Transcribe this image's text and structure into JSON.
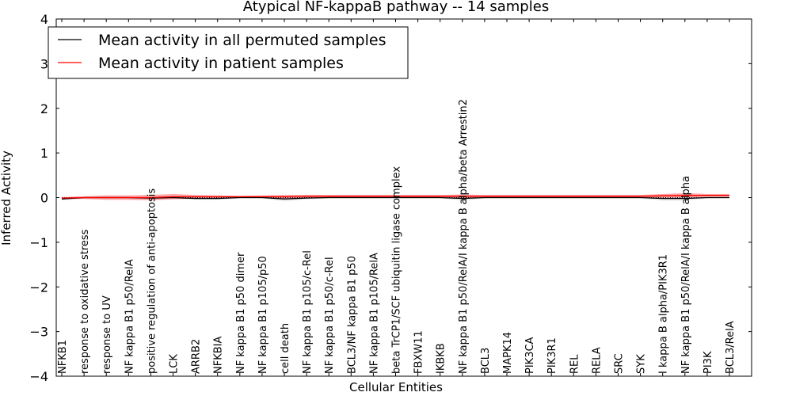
{
  "chart_data": {
    "type": "line",
    "title": "Atypical NF-kappaB pathway -- 14 samples",
    "xlabel": "Cellular Entities",
    "ylabel": "Inferred Activity",
    "ylim": [
      -4,
      4
    ],
    "yticks": [
      -4,
      -3,
      -2,
      -1,
      0,
      1,
      2,
      3,
      4
    ],
    "ytick_labels": [
      "−4",
      "−3",
      "−2",
      "−1",
      "0",
      "1",
      "2",
      "3",
      "4"
    ],
    "legend_position": "top-left",
    "reference_line": 0,
    "categories": [
      "NFKB1",
      "response to oxidative stress",
      "response to UV",
      "NF kappa B1 p50/RelA",
      "positive regulation of anti-apoptosis",
      "LCK",
      "ARRB2",
      "NFKBIA",
      "NF kappa B1 p50 dimer",
      "NF kappa B1 p105/p50",
      "cell death",
      "NF kappa B1 p105/c-Rel",
      "NF kappa B1 p50/c-Rel",
      "BCL3/NF kappa B1 p50",
      "NF kappa B1 p105/RelA",
      "beta TrCP1/SCF ubiquitin ligase complex",
      "FBXW11",
      "IKBKB",
      "NF kappa B1 p50/RelA/I kappa B alpha/beta Arrestin2",
      "BCL3",
      "MAPK14",
      "PIK3CA",
      "PIK3R1",
      "REL",
      "RELA",
      "SRC",
      "SYK",
      "I kappa B alpha/PIK3R1",
      "NF kappa B1 p50/RelA/I kappa B alpha",
      "PI3K",
      "BCL3/RelA"
    ],
    "series": [
      {
        "name": "Mean activity in all permuted samples",
        "color": "#000000",
        "band_color": "#b0b0b0",
        "values": [
          -0.03,
          0.0,
          0.0,
          0.0,
          -0.01,
          0.0,
          -0.02,
          -0.02,
          0.0,
          0.0,
          -0.03,
          -0.01,
          0.0,
          0.0,
          0.0,
          0.0,
          0.0,
          0.0,
          -0.02,
          0.0,
          0.0,
          0.0,
          0.0,
          0.0,
          0.0,
          0.0,
          0.0,
          -0.02,
          -0.02,
          0.0,
          0.0
        ],
        "band": [
          0.03,
          0.02,
          0.02,
          0.02,
          0.03,
          0.02,
          0.03,
          0.03,
          0.02,
          0.02,
          0.05,
          0.03,
          0.02,
          0.02,
          0.02,
          0.02,
          0.02,
          0.02,
          0.05,
          0.02,
          0.02,
          0.02,
          0.02,
          0.02,
          0.02,
          0.02,
          0.02,
          0.05,
          0.05,
          0.02,
          0.02
        ]
      },
      {
        "name": "Mean activity in patient samples",
        "color": "#ff0000",
        "band_color": "#ff0000",
        "values": [
          -0.01,
          0.0,
          0.0,
          0.0,
          0.0,
          0.02,
          0.02,
          0.02,
          0.02,
          0.02,
          0.02,
          0.03,
          0.03,
          0.03,
          0.03,
          0.03,
          0.03,
          0.03,
          0.03,
          0.03,
          0.03,
          0.03,
          0.03,
          0.03,
          0.03,
          0.03,
          0.03,
          0.04,
          0.05,
          0.05,
          0.05
        ],
        "band": [
          0.02,
          0.03,
          0.05,
          0.05,
          0.06,
          0.06,
          0.04,
          0.03,
          0.02,
          0.03,
          0.04,
          0.03,
          0.03,
          0.03,
          0.03,
          0.03,
          0.03,
          0.03,
          0.04,
          0.03,
          0.03,
          0.03,
          0.03,
          0.03,
          0.03,
          0.03,
          0.03,
          0.04,
          0.05,
          0.03,
          0.03
        ]
      }
    ]
  }
}
